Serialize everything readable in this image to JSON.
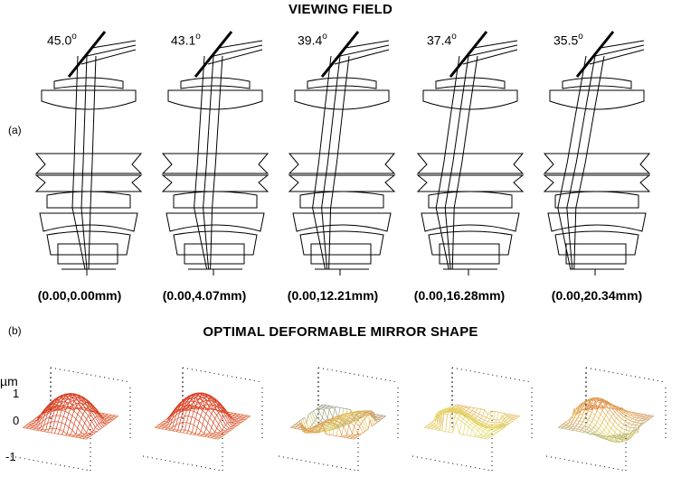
{
  "titles": {
    "viewing_field": "VIEWING FIELD",
    "mirror_shape": "OPTIMAL DEFORMABLE MIRROR SHAPE"
  },
  "panel_labels": {
    "a": "(a)",
    "b": "(b)"
  },
  "fields": [
    {
      "angle": "45.0",
      "degree": "o",
      "coord": "(0.00,0.00mm)"
    },
    {
      "angle": "43.1",
      "degree": "o",
      "coord": "(0.00,4.07mm)"
    },
    {
      "angle": "39.4",
      "degree": "o",
      "coord": "(0.00,12.21mm)"
    },
    {
      "angle": "37.4",
      "degree": "o",
      "coord": "(0.00,16.28mm)"
    },
    {
      "angle": "35.5",
      "degree": "o",
      "coord": "(0.00,20.34mm)"
    }
  ],
  "mirror_axis": {
    "unit": "µm",
    "ticks": [
      "1",
      "0",
      "-1"
    ]
  },
  "colors": {
    "line": "#000000",
    "mesh_low": "#3a4fb0",
    "mesh_mid": "#e8e070",
    "mesh_high": "#d83a20"
  }
}
